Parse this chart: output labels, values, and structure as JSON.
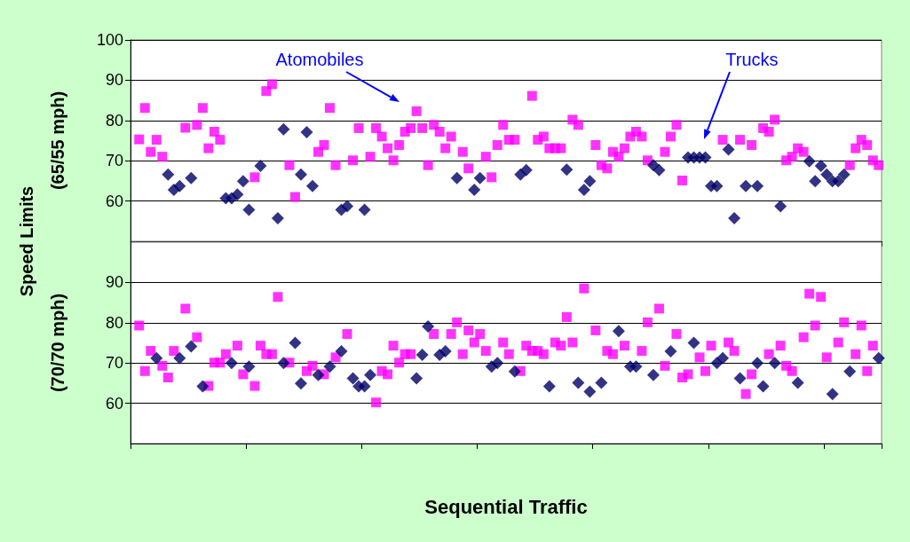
{
  "chart_data": [
    {
      "type": "scatter",
      "ylabel": "(65/55 mph)",
      "ylim": [
        50,
        100
      ],
      "yticks": [
        60,
        70,
        80,
        90,
        100
      ],
      "grid": "y",
      "tick_labels": "y",
      "annotations": [
        "Speed  Limits",
        "Atomobiles",
        "Trucks"
      ],
      "categories": [
        null,
        null,
        null,
        null,
        null,
        null,
        null,
        null,
        null,
        null,
        null,
        null,
        null,
        null,
        null,
        null,
        null,
        null,
        null,
        null,
        null,
        null,
        null,
        null,
        null,
        null,
        null,
        null,
        null,
        null,
        null,
        null,
        null,
        null,
        null,
        null,
        null,
        null,
        null,
        null,
        null,
        null,
        null,
        null,
        null,
        null,
        null,
        null,
        null,
        null,
        null,
        null,
        null,
        null,
        null,
        null,
        null,
        null,
        null,
        null,
        null,
        null,
        null,
        null,
        null,
        null,
        null,
        null,
        null,
        null,
        null,
        null,
        null,
        null,
        null,
        null,
        null,
        null,
        null,
        null,
        null,
        null,
        null,
        null,
        null,
        null,
        null,
        null,
        null,
        null,
        null,
        null,
        null,
        null,
        null,
        null,
        null,
        null,
        null,
        null,
        null,
        null,
        null,
        null,
        null,
        null,
        null,
        null,
        null,
        null,
        null,
        null,
        null,
        null,
        null,
        null,
        null,
        null,
        null,
        null,
        null,
        null,
        null,
        null,
        null,
        null,
        null,
        null,
        null,
        null
      ],
      "series": [
        {
          "color": "#ff00ff",
          "marker": "square",
          "values": [
            null,
            75.3,
            83.1,
            72.2,
            75.2,
            71,
            null,
            null,
            null,
            78.2,
            null,
            78.9,
            83.1,
            73.1,
            77.2,
            75.2,
            null,
            null,
            null,
            null,
            null,
            65.9,
            null,
            87.3,
            89,
            null,
            null,
            68.9,
            61,
            null,
            null,
            null,
            72.2,
            73.9,
            83.1,
            68.9,
            null,
            null,
            70.1,
            78.1,
            null,
            71,
            78.1,
            76,
            73.1,
            70.1,
            73.9,
            77.2,
            78.1,
            82.3,
            78.1,
            68.9,
            78.9,
            77.2,
            73.1,
            76,
            null,
            72.2,
            68.1,
            null,
            null,
            71,
            65.9,
            73.9,
            78.9,
            75.2,
            75.2,
            null,
            null,
            86.1,
            75.2,
            76,
            73.1,
            73.1,
            73.1,
            null,
            80.2,
            78.9,
            null,
            null,
            73.9,
            68.9,
            68.1,
            72.2,
            71,
            73.1,
            76,
            77.2,
            76,
            70.1,
            null,
            null,
            72.2,
            76,
            78.9,
            65.1,
            null,
            null,
            null,
            null,
            null,
            null,
            75.2,
            null,
            null,
            75.2,
            null,
            73.9,
            null,
            78.1,
            77.2,
            80.2,
            null,
            70.1,
            71,
            73.1,
            72.2,
            null,
            null,
            null,
            null,
            null,
            null,
            null,
            68.9,
            73.1,
            75.2,
            73.9,
            70.1,
            68.9
          ]
        },
        {
          "color": "#000066",
          "marker": "diamond",
          "values": [
            null,
            null,
            null,
            null,
            null,
            null,
            66.6,
            62.8,
            63.7,
            null,
            65.7,
            null,
            null,
            null,
            null,
            null,
            60.7,
            60.7,
            61.6,
            64.9,
            57.8,
            null,
            68.7,
            null,
            null,
            55.7,
            77.8,
            null,
            null,
            66.6,
            77.1,
            63.7,
            null,
            null,
            null,
            null,
            57.8,
            58.7,
            null,
            null,
            57.8,
            null,
            null,
            null,
            null,
            null,
            null,
            null,
            null,
            null,
            null,
            null,
            null,
            null,
            null,
            null,
            65.7,
            null,
            null,
            62.8,
            65.7,
            null,
            null,
            null,
            null,
            null,
            null,
            66.6,
            67.7,
            null,
            null,
            null,
            null,
            null,
            null,
            67.8,
            null,
            null,
            62.8,
            64.9,
            null,
            null,
            null,
            null,
            null,
            null,
            null,
            null,
            null,
            null,
            68.9,
            67.7,
            null,
            null,
            null,
            null,
            70.8,
            70.8,
            70.8,
            70.8,
            63.7,
            63.7,
            null,
            72.8,
            55.7,
            null,
            63.7,
            null,
            63.7,
            null,
            null,
            null,
            58.7,
            null,
            null,
            null,
            null,
            69.9,
            64.9,
            68.7,
            66.6,
            64.9,
            64.9,
            66.6,
            null,
            null,
            null,
            null,
            null,
            null
          ]
        }
      ]
    },
    {
      "type": "scatter",
      "ylabel": "(70/70 mph)",
      "xlabel": "Sequential Traffic",
      "ylim": [
        50,
        100
      ],
      "yticks": [
        60,
        70,
        80,
        90
      ],
      "grid": "y",
      "tick_labels": "y",
      "categories": [
        null,
        null,
        null,
        null,
        null,
        null,
        null,
        null,
        null,
        null,
        null,
        null,
        null,
        null,
        null,
        null,
        null,
        null,
        null,
        null,
        null,
        null,
        null,
        null,
        null,
        null,
        null,
        null,
        null,
        null,
        null,
        null,
        null,
        null,
        null,
        null,
        null,
        null,
        null,
        null,
        null,
        null,
        null,
        null,
        null,
        null,
        null,
        null,
        null,
        null,
        null,
        null,
        null,
        null,
        null,
        null,
        null,
        null,
        null,
        null,
        null,
        null,
        null,
        null,
        null,
        null,
        null,
        null,
        null,
        null,
        null,
        null,
        null,
        null,
        null,
        null,
        null,
        null,
        null,
        null,
        null,
        null,
        null,
        null,
        null,
        null,
        null,
        null,
        null,
        null,
        null,
        null,
        null,
        null,
        null,
        null,
        null,
        null,
        null,
        null,
        null,
        null,
        null,
        null,
        null,
        null,
        null,
        null,
        null,
        null,
        null,
        null,
        null,
        null,
        null,
        null,
        null,
        null,
        null,
        null,
        null,
        null,
        null,
        null,
        null,
        null,
        null,
        null,
        null,
        null
      ],
      "series": [
        {
          "color": "#ff00ff",
          "marker": "square",
          "values": [
            null,
            79.3,
            68,
            73,
            null,
            69.3,
            66.4,
            73,
            null,
            83.5,
            null,
            76.4,
            null,
            64.3,
            70.1,
            70.1,
            72.2,
            null,
            74.3,
            67.2,
            null,
            64.3,
            74.3,
            72.2,
            72.2,
            86.4,
            null,
            70.1,
            null,
            null,
            68,
            69.3,
            null,
            67.2,
            null,
            71.4,
            null,
            77.2,
            null,
            null,
            null,
            null,
            60.2,
            68,
            67.2,
            74.3,
            70.1,
            72.2,
            72.2,
            null,
            null,
            null,
            77.2,
            null,
            null,
            77.2,
            80.1,
            72.2,
            78.1,
            75.1,
            77.2,
            73,
            null,
            null,
            75.1,
            72.2,
            null,
            68,
            74.3,
            73,
            73,
            72.2,
            null,
            75.1,
            74.3,
            81.4,
            75.1,
            null,
            88.5,
            null,
            78.1,
            null,
            73,
            72.2,
            null,
            74.3,
            null,
            null,
            73,
            80.1,
            null,
            83.5,
            69.3,
            null,
            77.2,
            66.4,
            67.2,
            null,
            71.4,
            68,
            74.3,
            null,
            null,
            75.1,
            73,
            null,
            62.3,
            67.2,
            null,
            null,
            72.2,
            null,
            74.3,
            69.3,
            68,
            null,
            76.4,
            87.2,
            79.3,
            86.4,
            71.4,
            null,
            75.1,
            80.1,
            null,
            72.2,
            79.3,
            68,
            74.3,
            null
          ]
        },
        {
          "color": "#000066",
          "marker": "diamond",
          "values": [
            null,
            null,
            null,
            null,
            71.2,
            null,
            null,
            null,
            71.2,
            null,
            74.1,
            null,
            64.2,
            null,
            null,
            null,
            null,
            70,
            null,
            null,
            69.1,
            null,
            null,
            null,
            null,
            null,
            70,
            null,
            75,
            64.9,
            null,
            null,
            67,
            null,
            69.1,
            null,
            72.9,
            null,
            66.2,
            64.2,
            64.2,
            67,
            null,
            null,
            null,
            null,
            null,
            null,
            null,
            66.2,
            72,
            79.1,
            null,
            72,
            72.9,
            null,
            null,
            null,
            null,
            null,
            null,
            null,
            69.1,
            70,
            null,
            null,
            67.9,
            null,
            null,
            null,
            null,
            null,
            64.2,
            null,
            null,
            null,
            null,
            65.1,
            null,
            62.9,
            null,
            65.1,
            null,
            null,
            77.9,
            null,
            69.1,
            69.1,
            null,
            null,
            67,
            null,
            null,
            72.9,
            null,
            null,
            null,
            75,
            null,
            null,
            null,
            70,
            71.2,
            null,
            null,
            66.2,
            null,
            null,
            70,
            64.2,
            null,
            70,
            null,
            null,
            null,
            65.1,
            null,
            null,
            null,
            null,
            null,
            62.3,
            null,
            null,
            67.9,
            null,
            null,
            null,
            null,
            71.2
          ]
        }
      ]
    }
  ]
}
